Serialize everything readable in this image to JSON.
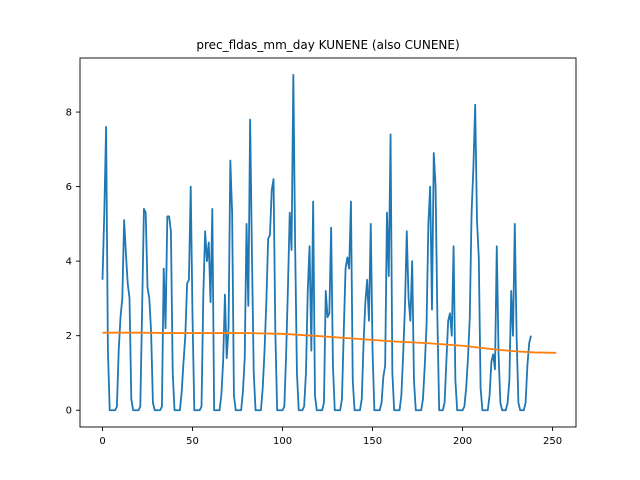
{
  "chart_data": {
    "type": "line",
    "title": "prec_fldas_mm_day KUNENE (also CUNENE)",
    "xlabel": "",
    "ylabel": "",
    "xlim": [
      -12.5,
      263
    ],
    "ylim": [
      -0.45,
      9.45
    ],
    "xticks": [
      0,
      50,
      100,
      150,
      200,
      250
    ],
    "yticks": [
      0,
      2,
      4,
      6,
      8
    ],
    "grid": false,
    "legend": "none",
    "series": [
      {
        "color": "#1f77b4",
        "x_start": 0,
        "values": [
          3.5,
          5.3,
          7.6,
          1.6,
          0.0,
          0.0,
          0.0,
          0.0,
          0.1,
          1.6,
          2.5,
          3.0,
          5.1,
          4.2,
          3.4,
          3.0,
          0.3,
          0.0,
          0.0,
          0.0,
          0.0,
          0.1,
          2.7,
          5.4,
          5.3,
          3.3,
          3.0,
          2.1,
          0.2,
          0.0,
          0.0,
          0.0,
          0.0,
          0.1,
          3.8,
          2.2,
          5.2,
          5.2,
          4.8,
          1.0,
          0.0,
          0.0,
          0.0,
          0.0,
          0.5,
          1.3,
          2.0,
          3.4,
          3.5,
          6.0,
          2.5,
          0.0,
          0.0,
          0.0,
          0.0,
          0.1,
          3.1,
          4.8,
          4.0,
          4.5,
          2.9,
          5.4,
          0.0,
          0.0,
          0.0,
          0.0,
          0.4,
          1.3,
          3.1,
          1.4,
          2.2,
          6.7,
          5.3,
          0.4,
          0.0,
          0.0,
          0.0,
          0.0,
          0.5,
          1.4,
          5.0,
          2.8,
          7.8,
          4.2,
          1.0,
          0.0,
          0.0,
          0.0,
          0.0,
          0.6,
          1.6,
          2.9,
          4.6,
          4.7,
          5.9,
          6.2,
          2.1,
          0.0,
          0.0,
          0.0,
          0.0,
          0.1,
          1.5,
          3.3,
          5.3,
          4.3,
          9.0,
          4.4,
          1.0,
          0.0,
          0.0,
          0.0,
          0.1,
          1.0,
          3.2,
          4.4,
          1.6,
          5.6,
          0.4,
          0.0,
          0.0,
          0.0,
          0.0,
          0.2,
          3.2,
          2.5,
          2.6,
          4.9,
          1.2,
          0.0,
          0.0,
          0.0,
          0.0,
          0.3,
          2.1,
          3.8,
          4.1,
          3.8,
          5.6,
          0.8,
          0.0,
          0.0,
          0.0,
          0.0,
          0.3,
          1.8,
          2.9,
          3.5,
          2.4,
          5.0,
          1.6,
          0.0,
          0.0,
          0.0,
          0.0,
          0.2,
          0.9,
          1.2,
          5.3,
          3.6,
          7.4,
          1.0,
          0.0,
          0.0,
          0.0,
          0.0,
          0.4,
          1.5,
          2.8,
          4.8,
          3.0,
          2.4,
          4.0,
          0.8,
          0.0,
          0.0,
          0.0,
          0.0,
          0.3,
          1.2,
          2.3,
          5.0,
          6.0,
          2.7,
          6.9,
          6.0,
          2.5,
          0.0,
          0.0,
          0.0,
          0.2,
          1.3,
          2.4,
          2.6,
          2.0,
          4.4,
          0.8,
          0.0,
          0.0,
          0.0,
          0.0,
          0.1,
          0.6,
          1.4,
          2.5,
          5.3,
          6.5,
          8.2,
          5.1,
          4.1,
          0.6,
          0.0,
          0.0,
          0.0,
          0.0,
          0.4,
          1.3,
          1.5,
          1.1,
          4.4,
          1.5,
          0.2,
          0.0,
          0.0,
          0.0,
          0.2,
          0.8,
          3.2,
          2.0,
          5.0,
          2.0,
          0.2,
          0.0,
          0.0,
          0.0,
          0.2,
          1.2,
          1.8,
          2.0
        ]
      },
      {
        "color": "#ff7f0e",
        "x": [
          0,
          20,
          40,
          60,
          80,
          100,
          120,
          140,
          160,
          180,
          200,
          220,
          230,
          240,
          252
        ],
        "values": [
          2.08,
          2.08,
          2.07,
          2.07,
          2.07,
          2.05,
          1.99,
          1.92,
          1.85,
          1.8,
          1.73,
          1.62,
          1.58,
          1.55,
          1.54
        ]
      }
    ]
  }
}
